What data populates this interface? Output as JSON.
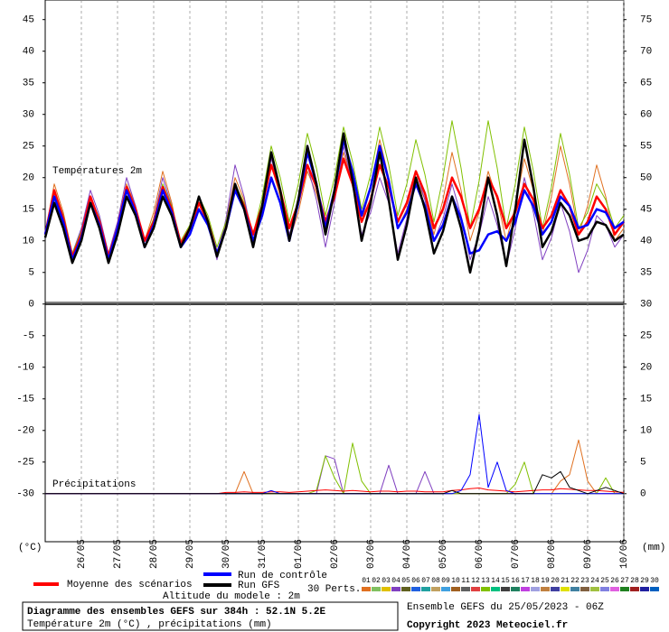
{
  "chart_data": {
    "type": "line",
    "title": "Diagramme des ensembles GEFS sur 384h : 52.1N 5.2E",
    "subtitle": "Température 2m (°C) , précipitations (mm)",
    "run_info": "Ensemble GEFS du 25/05/2023 - 06Z",
    "copyright": "Copyright 2023 Meteociel.fr",
    "altitude": "Altitude du modele : 2m",
    "annotations": [
      "Températures 2m",
      "Précipitations"
    ],
    "y_label": "(°C)",
    "y2_label": "(mm)",
    "categories": [
      null,
      null,
      null,
      null,
      "26/05",
      null,
      null,
      null,
      "27/05",
      null,
      null,
      null,
      "28/05",
      null,
      null,
      null,
      "29/05",
      null,
      null,
      null,
      "30/05",
      null,
      null,
      null,
      "31/05",
      null,
      null,
      null,
      "01/06",
      null,
      null,
      null,
      "02/06",
      null,
      null,
      null,
      "03/06",
      null,
      null,
      null,
      "04/06",
      null,
      null,
      null,
      "05/06",
      null,
      null,
      null,
      "06/06",
      null,
      null,
      null,
      "07/06",
      null,
      null,
      null,
      "08/06",
      null,
      null,
      null,
      "09/06",
      null,
      null,
      null,
      "10/06"
    ],
    "ylim": [
      -37.6,
      48.1
    ],
    "yticks": [
      -30,
      -25,
      -20,
      -15,
      -10,
      -5,
      0,
      5,
      10,
      15,
      20,
      25,
      30,
      35,
      40,
      45
    ],
    "y2lim": [
      -7.6,
      78.1
    ],
    "y2ticks": [
      0,
      5,
      10,
      15,
      20,
      25,
      30,
      35,
      40,
      45,
      50,
      55,
      60,
      65,
      70,
      75
    ],
    "grid": true,
    "series": [
      {
        "color": "#e07020",
        "values": [
          11,
          19,
          14.5,
          8,
          11.5,
          17,
          13.5,
          8,
          12.5,
          19,
          15.5,
          10,
          14.5,
          21,
          16,
          9,
          12,
          17,
          13.5,
          8,
          13,
          20,
          16.5,
          11,
          15.5,
          22,
          17,
          10,
          14.5,
          21,
          17.5,
          12,
          17,
          24,
          19.5,
          13,
          18.5,
          26,
          20,
          12,
          15,
          20,
          16.5,
          11,
          16.5,
          24,
          18,
          10,
          14.5,
          21,
          16.5,
          10,
          15.5,
          23,
          18,
          11,
          17,
          25,
          19,
          11,
          15.5,
          22,
          17,
          10,
          12
        ]
      },
      {
        "color": "#8040c0",
        "values": [
          11,
          18,
          14,
          8,
          12,
          18,
          14,
          8,
          13,
          20,
          15.5,
          9,
          13.5,
          20,
          15.5,
          9,
          11.5,
          16,
          12.5,
          7,
          13.5,
          22,
          17,
          10,
          15.5,
          23,
          18,
          11,
          15.5,
          22,
          16.5,
          9,
          16,
          25,
          19,
          11,
          14.5,
          20,
          16,
          8,
          13.5,
          21,
          16.5,
          10,
          13.5,
          19,
          14,
          7,
          11,
          17,
          12.5,
          6,
          12,
          20,
          14.5,
          7,
          10.5,
          16,
          11.5,
          5,
          8.5,
          14,
          12.5,
          9,
          11
        ]
      },
      {
        "color": "#80c000",
        "values": [
          11,
          18,
          14,
          8,
          11.5,
          17,
          13.5,
          7,
          11.5,
          18,
          15,
          10,
          13.5,
          19,
          15.5,
          10,
          12.5,
          17,
          14,
          9,
          13,
          19,
          16,
          11,
          17,
          25,
          20,
          13,
          19,
          27,
          21.5,
          14,
          20,
          28,
          22.5,
          15,
          20.5,
          28,
          22,
          14,
          19,
          26,
          20.5,
          13,
          20,
          29,
          21.5,
          12,
          19.5,
          29,
          21.5,
          12,
          19,
          28,
          21,
          12,
          18.5,
          27,
          20.5,
          12,
          14.5,
          19,
          16.5,
          12,
          14
        ]
      },
      {
        "name": "Moyenne des scénarios",
        "color": "#ff0000",
        "values": [
          11,
          18,
          13.5,
          7.5,
          11,
          17,
          13,
          7.5,
          12,
          18.5,
          15,
          10,
          13,
          18.5,
          15,
          9.5,
          12,
          16,
          13,
          8,
          12,
          18.5,
          15.5,
          11,
          15.5,
          22,
          18,
          12,
          16,
          22,
          18.5,
          13,
          17,
          23,
          19,
          13,
          16.5,
          22,
          18.5,
          13,
          16,
          21,
          17.5,
          12,
          15,
          20,
          17,
          12,
          15,
          20,
          17,
          12,
          14.5,
          19,
          16.5,
          12,
          14,
          18,
          15.5,
          11,
          13,
          17,
          15,
          11,
          13
        ]
      },
      {
        "name": "Run de contrôle",
        "color": "#0000ff",
        "values": [
          11,
          17,
          13,
          7,
          10.5,
          16,
          12.5,
          7,
          12,
          18,
          14.5,
          9,
          12.5,
          18,
          14.5,
          9,
          11,
          15,
          12.5,
          8,
          12,
          18,
          15,
          10,
          14,
          20,
          16,
          10,
          16,
          24,
          19,
          12,
          18,
          26,
          21,
          14,
          18.5,
          25,
          19.5,
          12,
          14.5,
          19,
          15.5,
          10,
          12.5,
          17,
          13.5,
          8,
          8.5,
          11,
          11.5,
          10,
          13,
          18,
          15.5,
          11,
          13,
          17,
          15.5,
          12,
          12.5,
          15,
          14.5,
          12,
          13
        ]
      },
      {
        "name": "Run GFS",
        "color": "#000000",
        "values": [
          10.5,
          16,
          12,
          6.5,
          10,
          16,
          12,
          6.5,
          11,
          17,
          14,
          9,
          12,
          17,
          14,
          9,
          12,
          17,
          13,
          7.5,
          12,
          19,
          15,
          9,
          15.5,
          24,
          18,
          10,
          16.5,
          25,
          19,
          11,
          18,
          27,
          19.5,
          10,
          16,
          24,
          16.5,
          7,
          12.5,
          20,
          15,
          8,
          11.5,
          17,
          12,
          5,
          11.5,
          20,
          14,
          6,
          15,
          26,
          18.5,
          9,
          11.5,
          16,
          14,
          10,
          10.5,
          13,
          12.5,
          10,
          11
        ]
      },
      {
        "color": "#e07020",
        "axis": "y2",
        "values": [
          0,
          0,
          0,
          0,
          0,
          0,
          0,
          0,
          0,
          0,
          0,
          0,
          0,
          0,
          0,
          0,
          0,
          0,
          0,
          0,
          0,
          0,
          3.5,
          0,
          0,
          0,
          0,
          0,
          0,
          0,
          0,
          0,
          0,
          0,
          0,
          0,
          0,
          0,
          0,
          0,
          0,
          0,
          0,
          0,
          0,
          0,
          0,
          0,
          0,
          0,
          0,
          0,
          0,
          0,
          0,
          0,
          0,
          2,
          3,
          8.5,
          2,
          0,
          0,
          0,
          0
        ]
      },
      {
        "color": "#8040c0",
        "axis": "y2",
        "values": [
          0,
          0,
          0,
          0,
          0,
          0,
          0,
          0,
          0,
          0,
          0,
          0,
          0,
          0,
          0,
          0,
          0,
          0,
          0,
          0,
          0,
          0,
          0,
          0,
          0,
          0,
          0,
          0,
          0,
          0,
          0,
          6,
          5.5,
          0,
          0,
          0,
          0,
          0,
          4.5,
          0,
          0,
          0,
          3.5,
          0,
          0,
          0,
          0,
          0,
          0,
          0,
          0,
          0,
          0,
          0,
          0,
          0,
          0,
          0,
          0,
          0,
          0,
          0,
          0,
          0,
          0
        ]
      },
      {
        "color": "#80c000",
        "axis": "y2",
        "values": [
          0,
          0,
          0,
          0,
          0,
          0,
          0,
          0,
          0,
          0,
          0,
          0,
          0,
          0,
          0,
          0,
          0,
          0,
          0,
          0,
          0,
          0,
          0,
          0,
          0,
          0,
          0,
          0,
          0,
          0,
          0.5,
          6,
          2.5,
          0,
          8,
          2,
          0,
          0,
          0,
          0,
          0,
          0,
          0,
          0,
          0,
          0,
          0,
          0,
          0,
          0,
          0,
          0,
          1.5,
          5,
          0,
          0,
          0,
          0,
          0,
          0,
          0,
          0,
          2.5,
          0,
          0
        ]
      },
      {
        "color": "#ff0000",
        "axis": "y2",
        "values": [
          0,
          0,
          0,
          0,
          0,
          0,
          0,
          0,
          0,
          0,
          0,
          0,
          0,
          0,
          0,
          0,
          0,
          0,
          0,
          0,
          0.2,
          0.2,
          0.3,
          0.2,
          0.2,
          0.3,
          0.3,
          0.2,
          0.3,
          0.4,
          0.5,
          0.6,
          0.5,
          0.4,
          0.5,
          0.4,
          0.3,
          0.4,
          0.4,
          0.3,
          0.4,
          0.4,
          0.3,
          0.3,
          0.3,
          0.5,
          0.6,
          0.8,
          0.9,
          0.6,
          0.5,
          0.4,
          0.3,
          0.4,
          0.5,
          0.6,
          0.6,
          0.8,
          0.7,
          0.6,
          0.5,
          0.5,
          0.4,
          0.3,
          0.2
        ]
      },
      {
        "color": "#0000ff",
        "axis": "y2",
        "values": [
          0,
          0,
          0,
          0,
          0,
          0,
          0,
          0,
          0,
          0,
          0,
          0,
          0,
          0,
          0,
          0,
          0,
          0,
          0,
          0,
          0,
          0,
          0,
          0,
          0,
          0.5,
          0,
          0,
          0,
          0,
          0,
          0,
          0,
          0,
          0,
          0,
          0,
          0,
          0,
          0,
          0,
          0,
          0,
          0,
          0,
          0,
          0.5,
          3,
          12.5,
          1,
          5,
          0.5,
          0,
          0,
          0,
          0,
          0,
          0,
          0,
          0,
          0,
          0,
          0,
          0,
          0
        ]
      },
      {
        "color": "#000000",
        "axis": "y2",
        "values": [
          0,
          0,
          0,
          0,
          0,
          0,
          0,
          0,
          0,
          0,
          0,
          0,
          0,
          0,
          0,
          0,
          0,
          0,
          0,
          0,
          0,
          0,
          0,
          0,
          0,
          0,
          0,
          0,
          0,
          0,
          0,
          0,
          0,
          0,
          0,
          0,
          0,
          0,
          0,
          0,
          0,
          0,
          0,
          0,
          0,
          0.5,
          0,
          0,
          0,
          0,
          0,
          0,
          0,
          0,
          0,
          3,
          2.5,
          3.5,
          1,
          0.5,
          0,
          0.5,
          1,
          0.5,
          0
        ]
      }
    ],
    "perturbations": {
      "label": "30 Perts.",
      "members": [
        {
          "name": "01",
          "color": "#e07020"
        },
        {
          "name": "02",
          "color": "#80c060"
        },
        {
          "name": "03",
          "color": "#e0c000"
        },
        {
          "name": "04",
          "color": "#8040c0"
        },
        {
          "name": "05",
          "color": "#606020"
        },
        {
          "name": "06",
          "color": "#2060e0"
        },
        {
          "name": "07",
          "color": "#20a0a0"
        },
        {
          "name": "08",
          "color": "#c0a060"
        },
        {
          "name": "09",
          "color": "#40a0e0"
        },
        {
          "name": "10",
          "color": "#a06020"
        },
        {
          "name": "11",
          "color": "#606060"
        },
        {
          "name": "12",
          "color": "#e04040"
        },
        {
          "name": "13",
          "color": "#80c000"
        },
        {
          "name": "14",
          "color": "#00c080"
        },
        {
          "name": "15",
          "color": "#404040"
        },
        {
          "name": "16",
          "color": "#208060"
        },
        {
          "name": "17",
          "color": "#c040e0"
        },
        {
          "name": "18",
          "color": "#a0a0e0"
        },
        {
          "name": "19",
          "color": "#c08040"
        },
        {
          "name": "20",
          "color": "#4040a0"
        },
        {
          "name": "21",
          "color": "#e0e000"
        },
        {
          "name": "22",
          "color": "#4080a0"
        },
        {
          "name": "23",
          "color": "#806040"
        },
        {
          "name": "24",
          "color": "#a0c040"
        },
        {
          "name": "25",
          "color": "#8080e0"
        },
        {
          "name": "26",
          "color": "#e060e0"
        },
        {
          "name": "27",
          "color": "#208020"
        },
        {
          "name": "28",
          "color": "#a02020"
        },
        {
          "name": "29",
          "color": "#2020a0"
        },
        {
          "name": "30",
          "color": "#0060c0"
        }
      ]
    }
  }
}
